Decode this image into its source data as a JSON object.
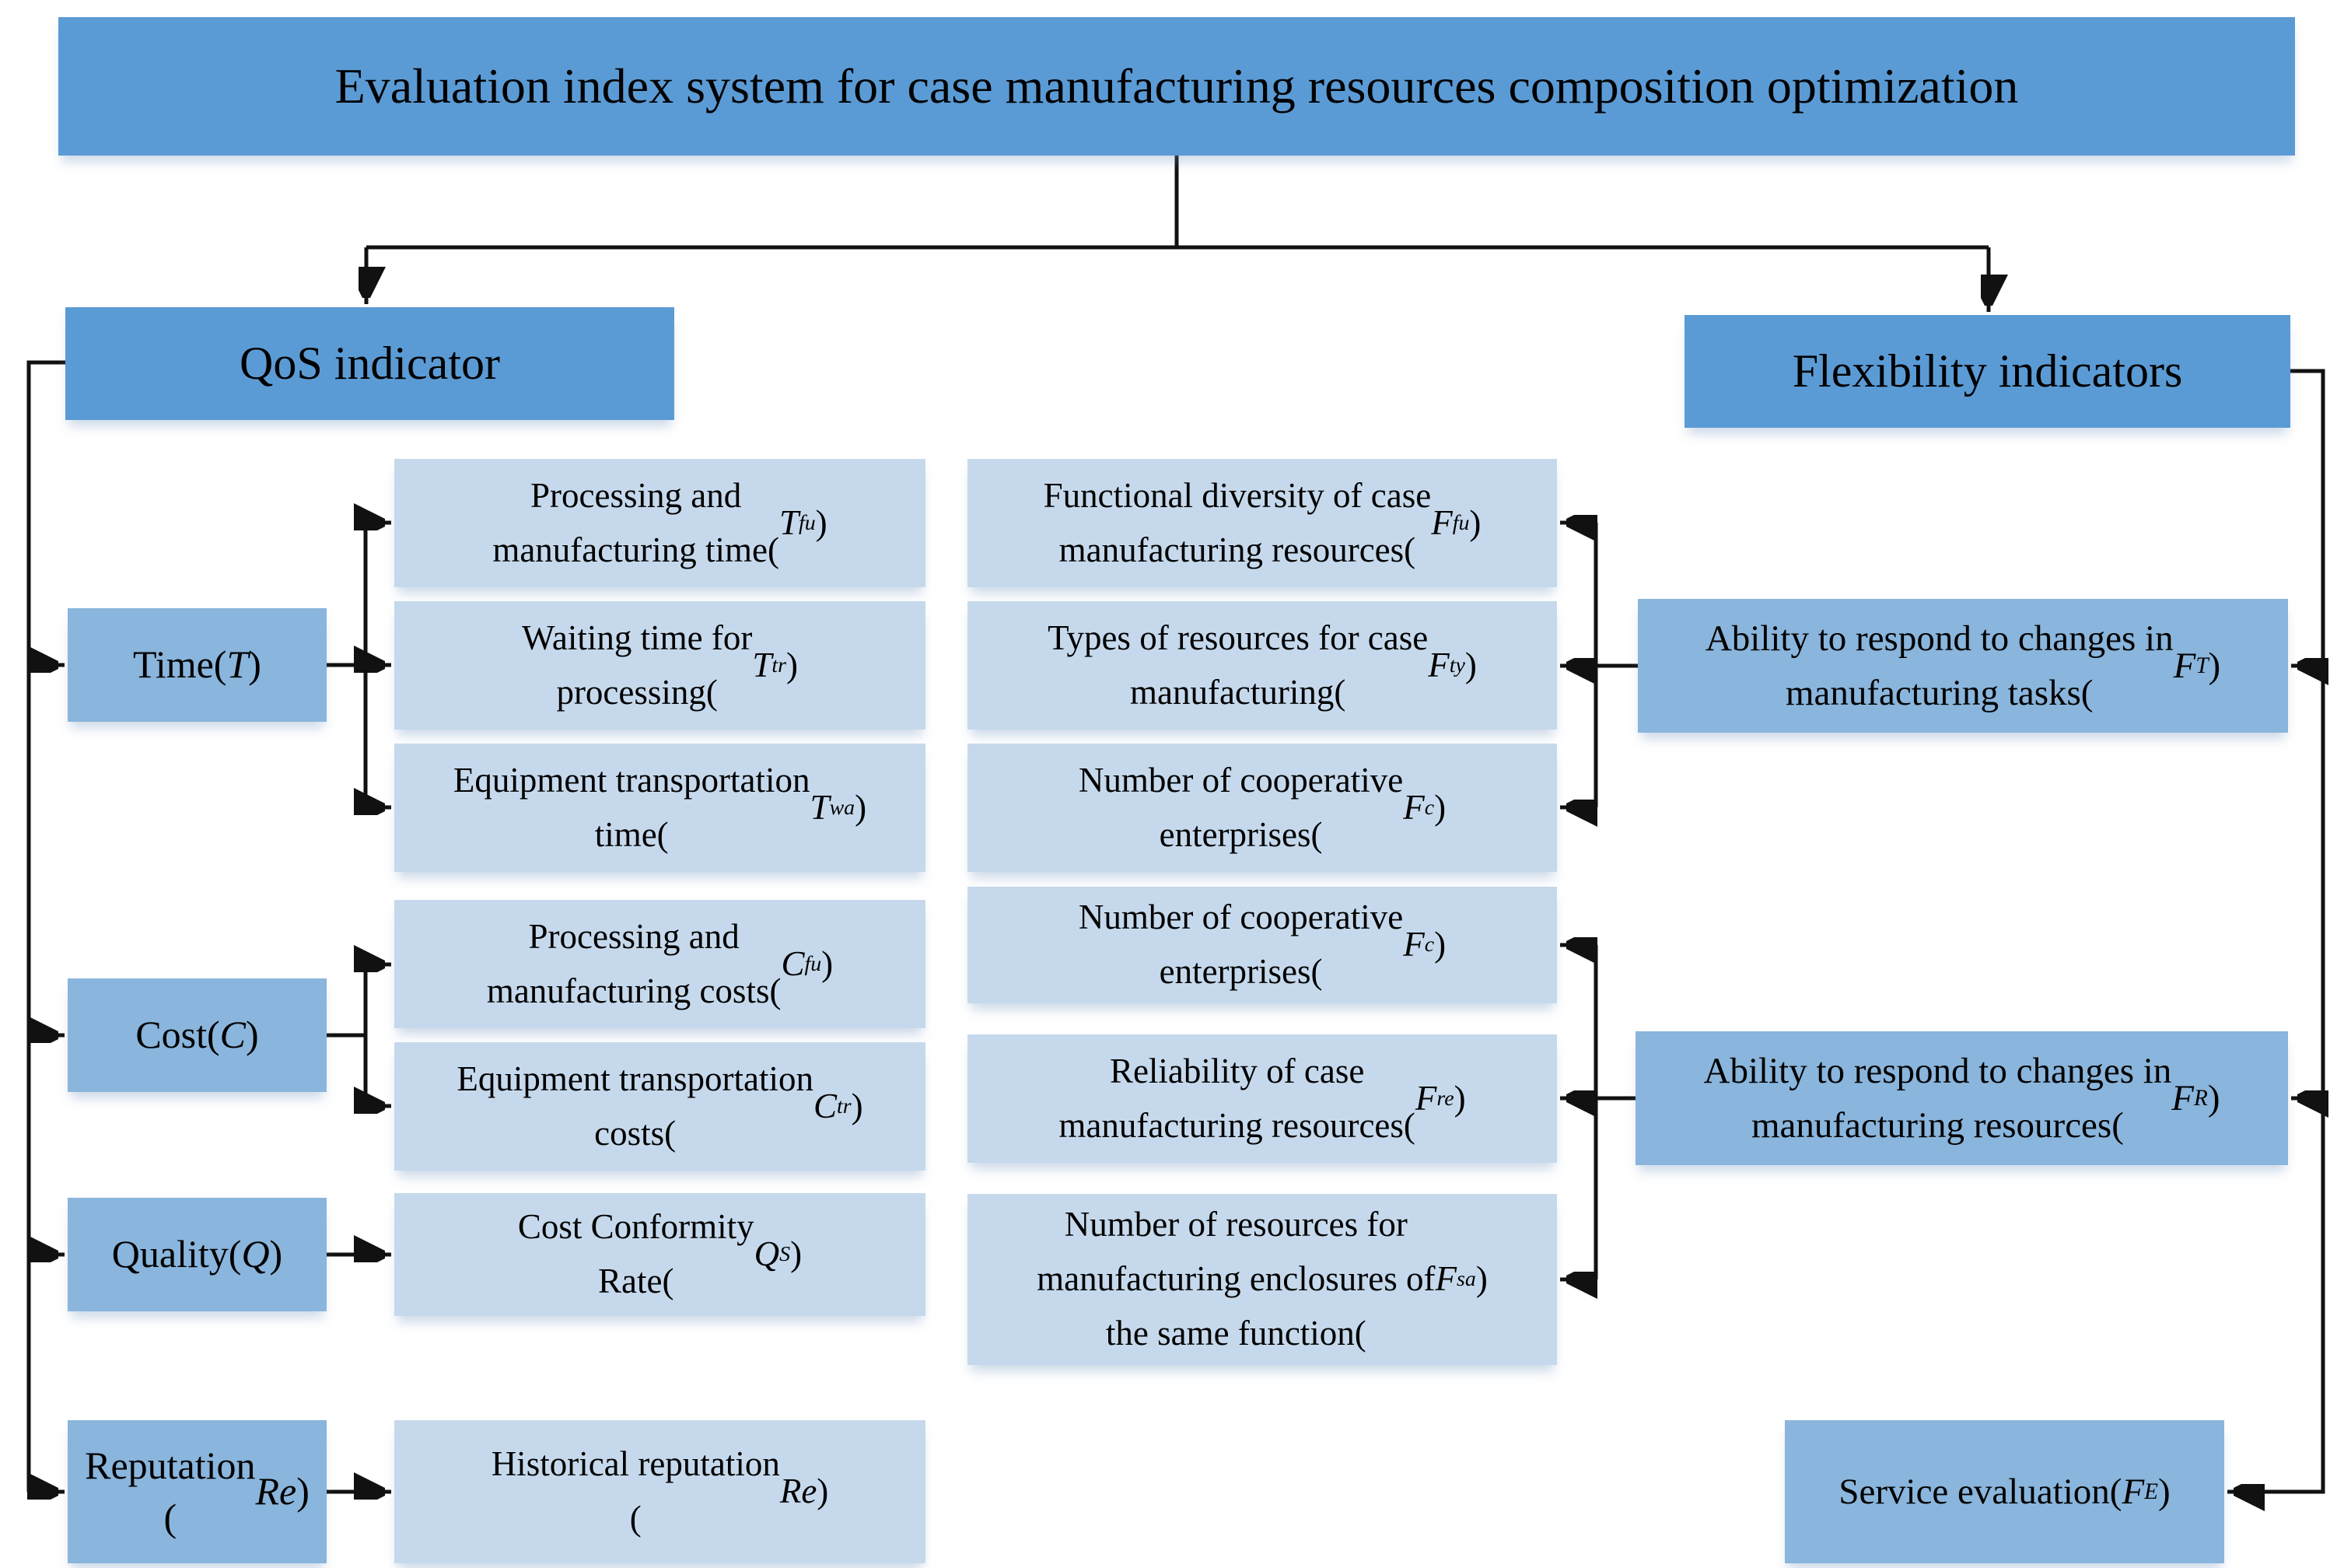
{
  "title": "Evaluation index system for case manufacturing resources composition optimization",
  "colors": {
    "primary": "#5b9bd5",
    "category": "#8ab5dc",
    "light": "#c6d9ec",
    "line": "#111111"
  },
  "qos": {
    "header": "QoS indicator",
    "categories": [
      {
        "label": "Time(*T*)"
      },
      {
        "label": "Cost(*C*)"
      },
      {
        "label": "Quality(*Q*)"
      },
      {
        "label": "Reputation\n(*Re*)"
      }
    ],
    "indicators": [
      {
        "label": "Processing and\nmanufacturing time(*T*~fu~)"
      },
      {
        "label": "Waiting time for\nprocessing(*T*~tr~)"
      },
      {
        "label": "Equipment transportation\ntime(*T*~wa~)"
      },
      {
        "label": "Processing and\nmanufacturing costs(*C*~fu~)"
      },
      {
        "label": "Equipment transportation\ncosts(*C*~tr~)"
      },
      {
        "label": "Cost Conformity\nRate(*Q*~S~)"
      },
      {
        "label": "Historical reputation\n(*Re*)"
      }
    ]
  },
  "flexibility": {
    "header": "Flexibility indicators",
    "indicators": [
      {
        "label": "Functional diversity of case\nmanufacturing resources(*F*~fu~)"
      },
      {
        "label": "Types of resources for case\nmanufacturing(*F*~ty~)"
      },
      {
        "label": "Number of cooperative\nenterprises(*F*~c~)"
      },
      {
        "label": "Number of cooperative\nenterprises(*F*~c~)"
      },
      {
        "label": "Reliability of case\nmanufacturing resources(*F*~re~)"
      },
      {
        "label": "Number of resources for\nmanufacturing enclosures of\nthe same function(*F*~sa~)"
      }
    ],
    "categories": [
      {
        "label": "Ability to respond to changes in\nmanufacturing tasks(*F*~T~)"
      },
      {
        "label": "Ability to respond to changes in\nmanufacturing resources(*F*~R~)"
      },
      {
        "label": "Service evaluation(*F*~E~)"
      }
    ]
  }
}
